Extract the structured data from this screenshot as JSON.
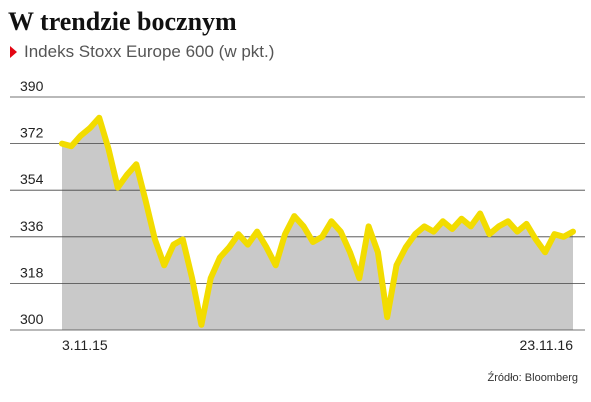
{
  "chart_data": {
    "type": "area",
    "title": "W trendzie bocznym",
    "subtitle": "Indeks Stoxx Europe 600 (w pkt.)",
    "source": "Źródło: Bloomberg",
    "categories": [
      "3.11.15",
      null,
      null,
      null,
      null,
      null,
      null,
      null,
      null,
      null,
      null,
      null,
      null,
      null,
      null,
      null,
      null,
      null,
      null,
      null,
      null,
      null,
      null,
      null,
      null,
      null,
      null,
      null,
      null,
      null,
      null,
      null,
      null,
      null,
      null,
      null,
      null,
      null,
      null,
      null,
      null,
      null,
      null,
      null,
      null,
      null,
      null,
      null,
      null,
      null,
      null,
      null,
      null,
      null,
      null,
      "23.11.16"
    ],
    "values": [
      372,
      371,
      375,
      378,
      382,
      370,
      355,
      360,
      364,
      350,
      335,
      325,
      333,
      335,
      320,
      302,
      320,
      328,
      332,
      337,
      333,
      338,
      332,
      325,
      337,
      344,
      340,
      334,
      336,
      342,
      338,
      330,
      320,
      340,
      330,
      305,
      325,
      332,
      337,
      340,
      338,
      342,
      339,
      343,
      340,
      345,
      337,
      340,
      342,
      338,
      341,
      335,
      330,
      337,
      336,
      338
    ],
    "color": "#f2dc00",
    "fill": "#c9c9c9",
    "ylim": [
      300,
      390
    ],
    "yticks": [
      300,
      318,
      336,
      354,
      372,
      390
    ],
    "grid": true
  }
}
